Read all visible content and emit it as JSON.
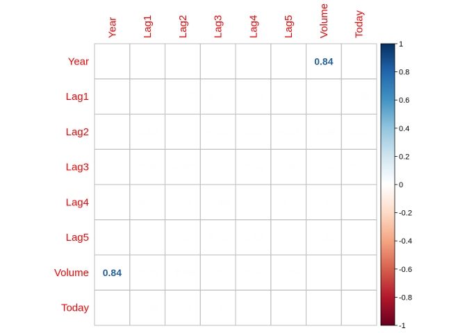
{
  "chart_data": {
    "type": "heatmap",
    "title": "",
    "variables": [
      "Year",
      "Lag1",
      "Lag2",
      "Lag3",
      "Lag4",
      "Lag5",
      "Volume",
      "Today"
    ],
    "matrix": [
      [
        null,
        -0.03,
        -0.03,
        -0.03,
        -0.03,
        -0.03,
        0.84,
        -0.03
      ],
      [
        -0.03,
        null,
        -0.07,
        0.06,
        -0.07,
        null,
        -0.06,
        -0.08
      ],
      [
        -0.03,
        -0.07,
        null,
        -0.08,
        0.06,
        -0.07,
        -0.09,
        0.06
      ],
      [
        -0.03,
        0.06,
        -0.08,
        null,
        -0.08,
        0.06,
        -0.07,
        -0.07
      ],
      [
        -0.03,
        -0.07,
        0.06,
        -0.08,
        null,
        -0.08,
        -0.06,
        null
      ],
      [
        -0.03,
        null,
        -0.07,
        0.06,
        -0.08,
        null,
        -0.06,
        -0.01
      ],
      [
        0.84,
        -0.06,
        -0.09,
        -0.07,
        -0.06,
        -0.06,
        null,
        -0.03
      ],
      [
        -0.03,
        -0.08,
        0.06,
        -0.07,
        null,
        -0.01,
        -0.03,
        null
      ]
    ],
    "colorbar": {
      "ticks": [
        "1",
        "0.8",
        "0.6",
        "0.4",
        "0.2",
        "0",
        "-0.2",
        "-0.4",
        "-0.6",
        "-0.8",
        "-1"
      ],
      "range": [
        -1,
        1
      ]
    },
    "colors": {
      "label": "#ff0000",
      "grid": "#bdbdbd",
      "scale": [
        "#67001f",
        "#b2182b",
        "#d6604d",
        "#f4a582",
        "#fddbc7",
        "#ffffff",
        "#d1e5f0",
        "#92c5de",
        "#4393c3",
        "#2166ac",
        "#053061"
      ]
    }
  }
}
